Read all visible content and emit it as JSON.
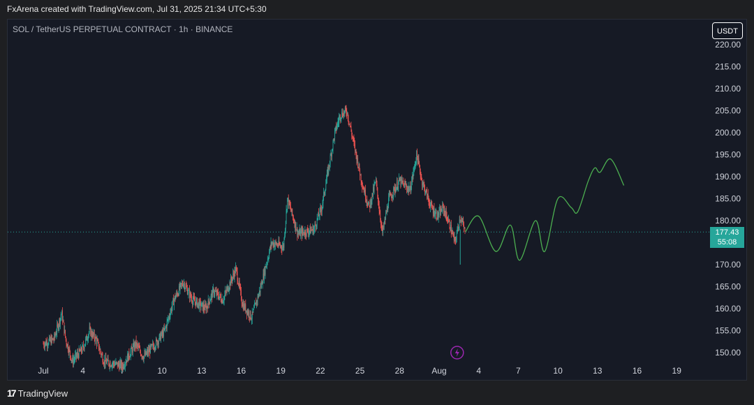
{
  "header": {
    "text": "FxArena created with TradingView.com, Jul 31, 2025 21:34 UTC+5:30"
  },
  "symbol": {
    "title": "SOL / TetherUS PERPETUAL CONTRACT · 1h · BINANCE"
  },
  "currency_button": "USDT",
  "footer": {
    "brand": "TradingView",
    "logo": "17"
  },
  "price_label": {
    "price": "177.43",
    "countdown": "55:08"
  },
  "colors": {
    "bull": "#26a69a",
    "bear": "#ef5350",
    "projection": "#4caf50",
    "background": "#161a25",
    "event": "#9c27b0"
  },
  "chart_data": {
    "type": "candlestick",
    "title": "",
    "xlabel": "",
    "ylabel": "",
    "ylim": [
      148,
      223
    ],
    "y_ticks": [
      150,
      155,
      160,
      165,
      170,
      175,
      180,
      185,
      190,
      195,
      200,
      205,
      210,
      215,
      220
    ],
    "y_tick_labels": [
      "150.00",
      "155.00",
      "160.00",
      "165.00",
      "170.00",
      "175.00",
      "180.00",
      "185.00",
      "190.00",
      "195.00",
      "200.00",
      "205.00",
      "210.00",
      "215.00",
      "220.00"
    ],
    "x_tick_labels": [
      "Jul",
      "4",
      "7",
      "10",
      "13",
      "16",
      "19",
      "22",
      "25",
      "28",
      "Aug",
      "4",
      "7",
      "10",
      "13",
      "16",
      "19"
    ],
    "current_price": 177.43,
    "price_anchors": [
      [
        0,
        152
      ],
      [
        0.8,
        153
      ],
      [
        1.4,
        159
      ],
      [
        1.7,
        153
      ],
      [
        2.2,
        148
      ],
      [
        3,
        151
      ],
      [
        3.5,
        155
      ],
      [
        4,
        153
      ],
      [
        4.6,
        148
      ],
      [
        6,
        147
      ],
      [
        7,
        152
      ],
      [
        7.6,
        149
      ],
      [
        8.5,
        152
      ],
      [
        9.2,
        155
      ],
      [
        9.9,
        162
      ],
      [
        10.6,
        166
      ],
      [
        11.3,
        162
      ],
      [
        12.3,
        160
      ],
      [
        12.9,
        164
      ],
      [
        13.6,
        162
      ],
      [
        14.6,
        169
      ],
      [
        15.1,
        161
      ],
      [
        15.8,
        158
      ],
      [
        16.4,
        164
      ],
      [
        17.3,
        175
      ],
      [
        18.2,
        174
      ],
      [
        18.5,
        185
      ],
      [
        19.3,
        177
      ],
      [
        20.5,
        178
      ],
      [
        21.1,
        183
      ],
      [
        21.5,
        190
      ],
      [
        22.1,
        200
      ],
      [
        22.5,
        204
      ],
      [
        23,
        205
      ],
      [
        23.5,
        198
      ],
      [
        24.2,
        188
      ],
      [
        24.7,
        183
      ],
      [
        25.2,
        189
      ],
      [
        25.7,
        177
      ],
      [
        26.2,
        185
      ],
      [
        27,
        189
      ],
      [
        27.8,
        187
      ],
      [
        28.3,
        195
      ],
      [
        28.7,
        189
      ],
      [
        29.4,
        183
      ],
      [
        29.9,
        181
      ],
      [
        30.3,
        183
      ],
      [
        30.8,
        179
      ],
      [
        31.2,
        175
      ],
      [
        31.6,
        181
      ],
      [
        32,
        177
      ]
    ],
    "projection": [
      [
        32,
        177.5
      ],
      [
        33,
        181
      ],
      [
        34.3,
        173
      ],
      [
        35.4,
        179
      ],
      [
        36.1,
        171
      ],
      [
        37.3,
        180
      ],
      [
        38,
        173
      ],
      [
        39,
        185
      ],
      [
        40,
        183
      ],
      [
        40.5,
        182
      ],
      [
        41.3,
        189
      ],
      [
        41.8,
        192
      ],
      [
        42.2,
        191
      ],
      [
        43,
        194
      ],
      [
        44,
        188
      ]
    ],
    "event_marker_x": 32
  }
}
